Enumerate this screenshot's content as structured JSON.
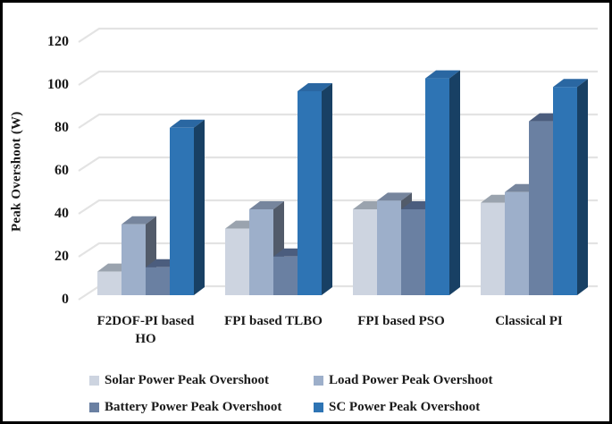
{
  "figure": {
    "background": "#ffffff",
    "border_color": "#000000",
    "text_color": "#1a1a1a",
    "grid_color": "#e3e3e3"
  },
  "chart_data": {
    "type": "bar",
    "variant": "3d-clustered-column",
    "title": "",
    "xlabel": "",
    "ylabel": "Peak Overshoot (W)",
    "ylim": [
      0,
      120
    ],
    "yticks": [
      0,
      20,
      40,
      60,
      80,
      100,
      120
    ],
    "grid": true,
    "legend_position": "bottom",
    "categories": [
      "F2DOF-PI based HO",
      "FPI based TLBO",
      "FPI based PSO",
      "Classical PI"
    ],
    "series": [
      {
        "key": "solar",
        "name": "Solar Power Peak Overshoot",
        "values": [
          11,
          31,
          40,
          43
        ],
        "color": "#cdd4e0",
        "top_color": "#9aa3ae",
        "side_color": "#8d96a1"
      },
      {
        "key": "load",
        "name": "Load Power Peak Overshoot",
        "values": [
          33,
          40,
          44,
          48
        ],
        "color": "#9dafca",
        "top_color": "#76859d",
        "side_color": "#525b6a"
      },
      {
        "key": "battery",
        "name": "Battery Power Peak Overshoot",
        "values": [
          13,
          18,
          40,
          81
        ],
        "color": "#6a80a2",
        "top_color": "#4b5d7e",
        "side_color": "#3f4d68"
      },
      {
        "key": "sc",
        "name": "SC Power Peak Overshoot",
        "values": [
          78,
          95,
          101,
          97
        ],
        "color": "#2e74b4",
        "top_color": "#2a67a2",
        "side_color": "#184064"
      }
    ]
  }
}
